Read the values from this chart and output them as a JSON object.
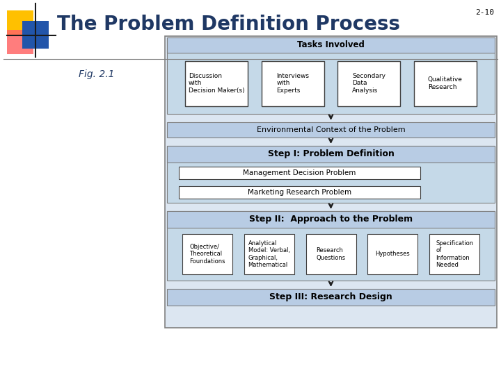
{
  "title": "The Problem Definition Process",
  "slide_num": "2-10",
  "fig_label": "Fig. 2.1",
  "bg_color": "#ffffff",
  "diagram_bg": "#dce6f1",
  "diagram_border": "#808080",
  "header_bg": "#b8cce4",
  "section_bg": "#c5d9e8",
  "box_bg": "#ffffff",
  "box_border": "#404040",
  "arrow_color": "#1f1f1f",
  "title_color": "#1f3864",
  "slide_num_color": "#000000",
  "tasks_involved_label": "Tasks Involved",
  "task_boxes": [
    "Discussion\nwith\nDecision Maker(s)",
    "Interviews\nwith\nExperts",
    "Secondary\nData\nAnalysis",
    "Qualitative\nResearch"
  ],
  "env_context_label": "Environmental Context of the Problem",
  "step1_label": "Step I: Problem Definition",
  "mgmt_label": "Management Decision Problem",
  "mktg_label": "Marketing Research Problem",
  "step2_label": "Step II:  Approach to the Problem",
  "step2_boxes": [
    "Objective/\nTheoretical\nFoundations",
    "Analytical\nModel: Verbal,\nGraphical,\nMathematical",
    "Research\nQuestions",
    "Hypotheses",
    "Specification\nof\nInformation\nNeeded"
  ],
  "step3_label": "Step III: Research Design",
  "logo_yellow": "#ffc000",
  "logo_pink": "#ff6666",
  "logo_blue": "#2255aa",
  "logo_darkblue": "#1f3864"
}
